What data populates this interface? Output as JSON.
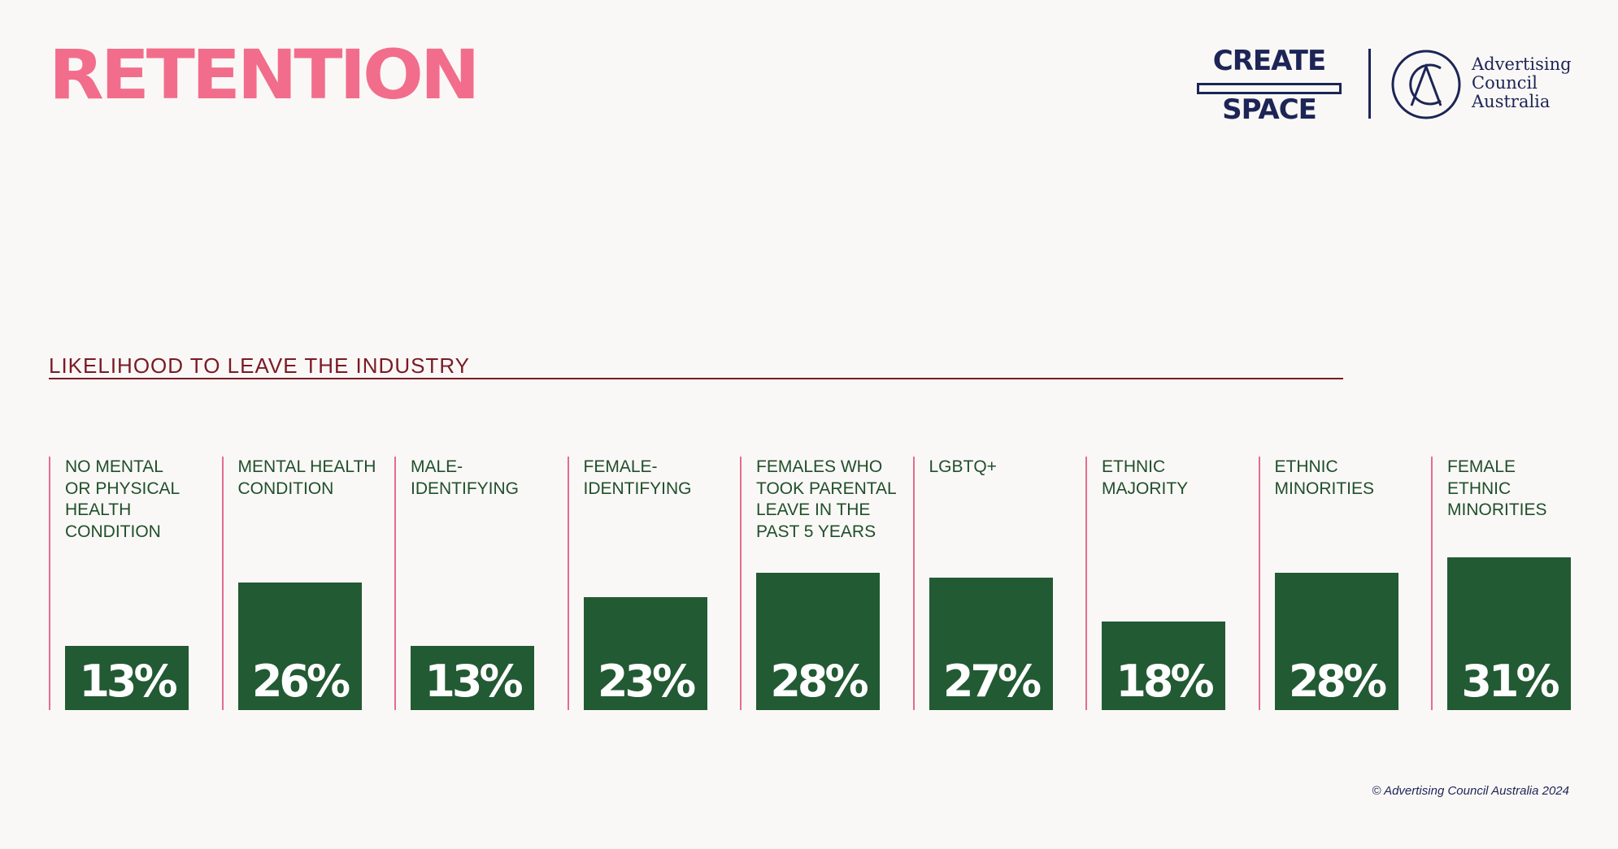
{
  "page_title": "RETENTION",
  "logos": {
    "create_space_top": "CREATE",
    "create_space_bottom": "SPACE",
    "acaa_line1": "Advertising",
    "acaa_line2": "Council",
    "acaa_line3": "Australia"
  },
  "copyright": "© Advertising Council Australia 2024",
  "colors": {
    "title": "#f26d8b",
    "bar": "#225a33",
    "rule": "#7a1a25",
    "divider": "#e46c8d"
  },
  "chart_data": {
    "type": "bar",
    "title": "LIKELIHOOD TO LEAVE THE INDUSTRY",
    "categories": [
      [
        "NO MENTAL",
        "OR PHYSICAL",
        "HEALTH",
        "CONDITION"
      ],
      [
        "MENTAL HEALTH",
        "CONDITION"
      ],
      [
        "MALE-",
        "IDENTIFYING"
      ],
      [
        "FEMALE-",
        "IDENTIFYING"
      ],
      [
        "FEMALES WHO",
        "TOOK PARENTAL",
        "LEAVE IN THE",
        "PAST 5 YEARS"
      ],
      [
        "LGBTQ+"
      ],
      [
        "ETHNIC",
        "MAJORITY"
      ],
      [
        "ETHNIC",
        "MINORITIES"
      ],
      [
        "FEMALE",
        "ETHNIC",
        "MINORITIES"
      ]
    ],
    "values": [
      13,
      26,
      13,
      23,
      28,
      27,
      18,
      28,
      31
    ],
    "value_labels": [
      "13%",
      "26%",
      "13%",
      "23%",
      "28%",
      "27%",
      "18%",
      "28%",
      "31%"
    ],
    "unit": "%"
  }
}
